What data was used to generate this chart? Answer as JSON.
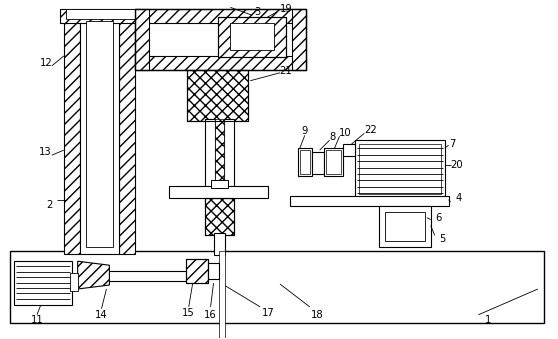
{
  "background_color": "#ffffff",
  "line_color": "#000000",
  "figsize": [
    5.58,
    3.39
  ],
  "dpi": 100
}
